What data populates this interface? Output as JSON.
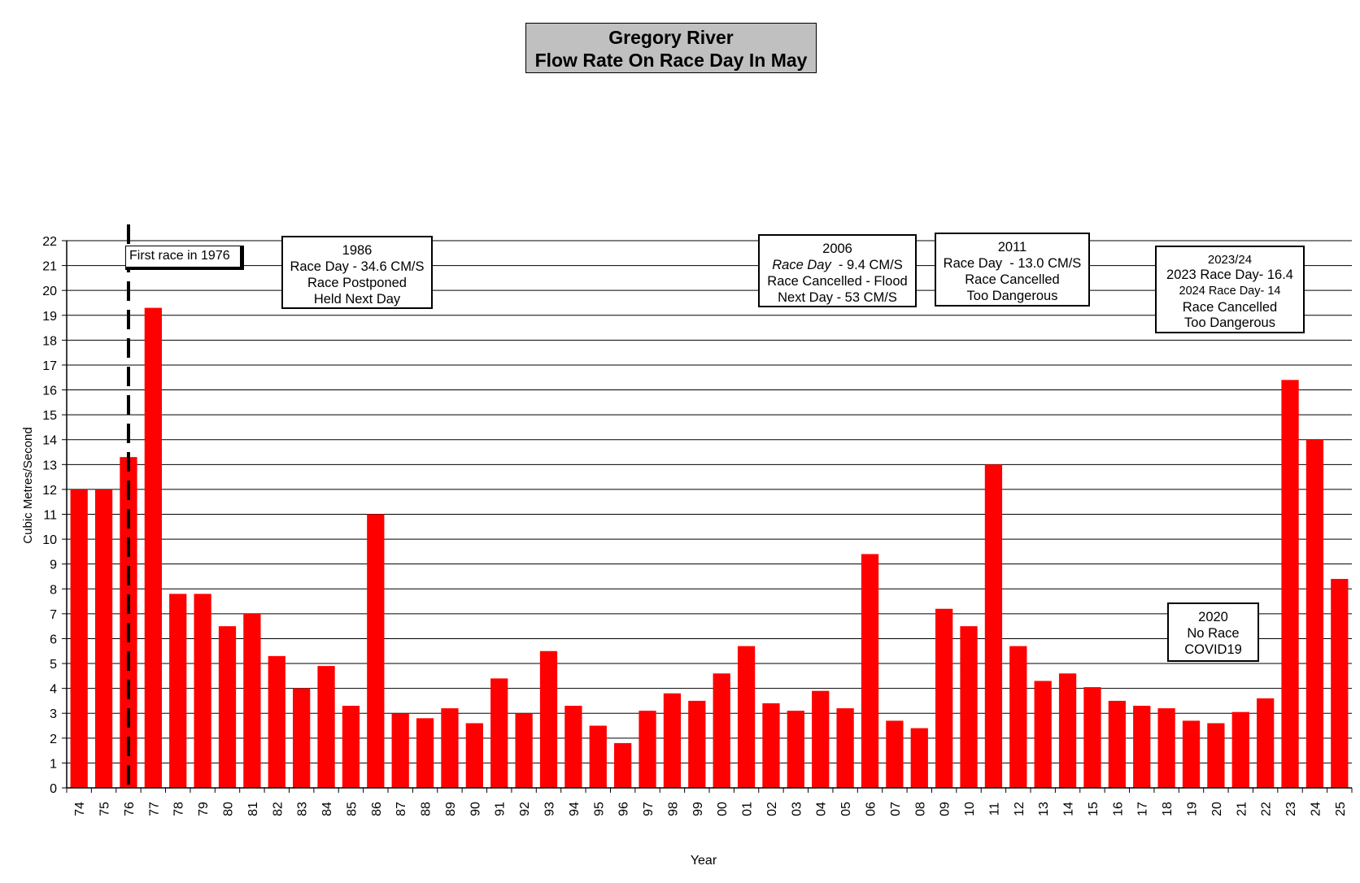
{
  "chart_data": {
    "type": "bar",
    "title_line1": "Gregory River",
    "title_line2": "Flow Rate On Race Day In May",
    "xlabel": "Year",
    "ylabel": "Cubic Metres/Second",
    "ylim": [
      0,
      22
    ],
    "yticks": [
      0,
      1,
      2,
      3,
      4,
      5,
      6,
      7,
      8,
      9,
      10,
      11,
      12,
      13,
      14,
      15,
      16,
      17,
      18,
      19,
      20,
      21,
      22
    ],
    "grid": true,
    "bar_color": "#ff0000",
    "categories": [
      "74",
      "75",
      "76",
      "77",
      "78",
      "79",
      "80",
      "81",
      "82",
      "83",
      "84",
      "85",
      "86",
      "87",
      "88",
      "89",
      "90",
      "91",
      "92",
      "93",
      "94",
      "95",
      "96",
      "97",
      "98",
      "99",
      "00",
      "01",
      "02",
      "03",
      "04",
      "05",
      "06",
      "07",
      "08",
      "09",
      "10",
      "11",
      "12",
      "13",
      "14",
      "15",
      "16",
      "17",
      "18",
      "19",
      "20",
      "21",
      "22",
      "23",
      "24",
      "25"
    ],
    "values": [
      12.0,
      12.0,
      13.3,
      19.3,
      7.8,
      7.8,
      6.5,
      7.0,
      5.3,
      4.0,
      4.9,
      3.3,
      11.0,
      3.0,
      2.8,
      3.2,
      2.6,
      4.4,
      3.0,
      5.5,
      3.3,
      2.5,
      1.8,
      3.1,
      3.8,
      3.5,
      4.6,
      5.7,
      3.4,
      3.1,
      3.9,
      3.2,
      9.4,
      2.7,
      2.4,
      7.2,
      6.5,
      13.0,
      5.7,
      4.3,
      4.6,
      4.05,
      3.5,
      3.3,
      3.2,
      2.7,
      2.6,
      3.05,
      3.6,
      16.4,
      14.0,
      8.4
    ],
    "marker_line_category": "76"
  },
  "annotations": {
    "first_race": "First race in 1976",
    "a1986": [
      "1986",
      "Race Day - 34.6 CM/S",
      "Race Postponed",
      "Held Next Day"
    ],
    "a2006_line1": "2006",
    "a2006_line2_italic": "Race Day",
    "a2006_line2_rest": "  - 9.4 CM/S",
    "a2006_line3": "Race Cancelled - Flood",
    "a2006_line4": "Next Day - 53 CM/S",
    "a2011": [
      "2011",
      "Race Day  - 13.0 CM/S",
      "Race Cancelled",
      "Too Dangerous"
    ],
    "a2023": [
      "2023/24",
      "2023 Race Day- 16.4",
      "2024 Race Day- 14",
      "Race Cancelled",
      "Too Dangerous"
    ],
    "a2020": [
      "2020",
      "No Race",
      "COVID19"
    ]
  }
}
